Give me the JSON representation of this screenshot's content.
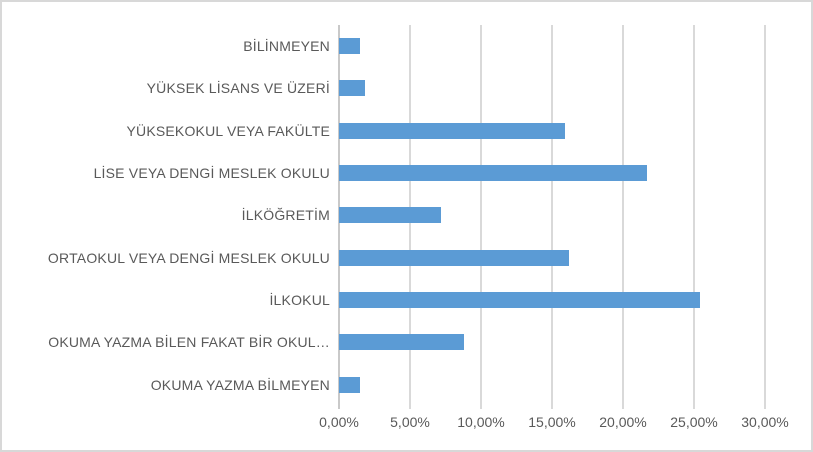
{
  "chart_data": {
    "type": "bar",
    "orientation": "horizontal",
    "title": "",
    "xlabel": "",
    "ylabel": "",
    "categories": [
      "BİLİNMEYEN",
      "YÜKSEK LİSANS VE ÜZERİ",
      "YÜKSEKOKUL VEYA FAKÜLTE",
      "LİSE VEYA DENGİ MESLEK OKULU",
      "İLKÖĞRETİM",
      "ORTAOKUL VEYA DENGİ MESLEK OKULU",
      "İLKOKUL",
      "OKUMA YAZMA BİLEN FAKAT BİR OKUL…",
      "OKUMA YAZMA BİLMEYEN"
    ],
    "values": [
      1.5,
      1.8,
      15.9,
      21.7,
      7.2,
      16.2,
      25.4,
      8.8,
      1.5
    ],
    "value_unit": "%",
    "xlim": [
      0,
      30
    ],
    "x_tick_step": 5,
    "x_tick_labels": [
      "0,00%",
      "5,00%",
      "10,00%",
      "15,00%",
      "20,00%",
      "25,00%",
      "30,00%"
    ],
    "grid": true,
    "legend": false
  },
  "colors": {
    "bar": "#5b9bd5",
    "gridline": "#d9d9d9",
    "axis_line": "#c9c9c9",
    "text": "#595959",
    "border": "#d8d8d8",
    "background": "#ffffff"
  }
}
